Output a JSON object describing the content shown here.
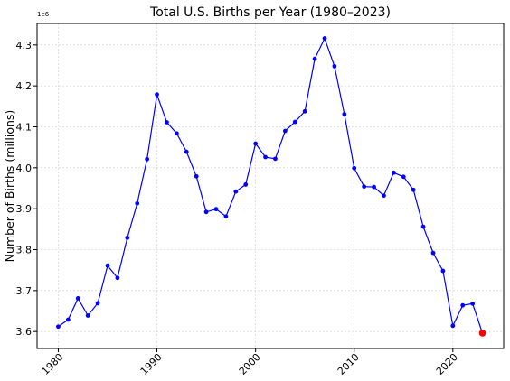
{
  "chart_data": {
    "type": "line",
    "title": "Total U.S. Births per Year (1980–2023)",
    "xlabel": "",
    "ylabel": "Number of Births (millions)",
    "offset_text": "1e6",
    "xlim": [
      1977.85,
      2025.15
    ],
    "ylim": [
      3.5585,
      4.3525
    ],
    "xticks": [
      1980,
      1990,
      2000,
      2010,
      2020
    ],
    "yticks": [
      3.6,
      3.7,
      3.8,
      3.9,
      4.0,
      4.1,
      4.2,
      4.3
    ],
    "grid": true,
    "line_color": "#0000ff",
    "highlight_color": "#ff0000",
    "series": [
      {
        "x": [
          1980,
          1981,
          1982,
          1983,
          1984,
          1985,
          1986,
          1987,
          1988,
          1989,
          1990,
          1991,
          1992,
          1993,
          1994,
          1995,
          1996,
          1997,
          1998,
          1999,
          2000,
          2001,
          2002,
          2003,
          2004,
          2005,
          2006,
          2007,
          2008,
          2009,
          2010,
          2011,
          2012,
          2013,
          2014,
          2015,
          2016,
          2017,
          2018,
          2019,
          2020,
          2021,
          2022,
          2023
        ],
        "y": [
          3.612,
          3.629,
          3.681,
          3.639,
          3.669,
          3.761,
          3.731,
          3.829,
          3.913,
          4.021,
          4.179,
          4.111,
          4.084,
          4.039,
          3.979,
          3.892,
          3.899,
          3.881,
          3.942,
          3.959,
          4.059,
          4.026,
          4.022,
          4.09,
          4.112,
          4.138,
          4.266,
          4.316,
          4.248,
          4.131,
          3.999,
          3.954,
          3.953,
          3.932,
          3.988,
          3.978,
          3.946,
          3.856,
          3.792,
          3.748,
          3.614,
          3.664,
          3.668,
          3.596
        ]
      }
    ],
    "highlight_point": {
      "x": 2023,
      "y": 3.596
    }
  }
}
